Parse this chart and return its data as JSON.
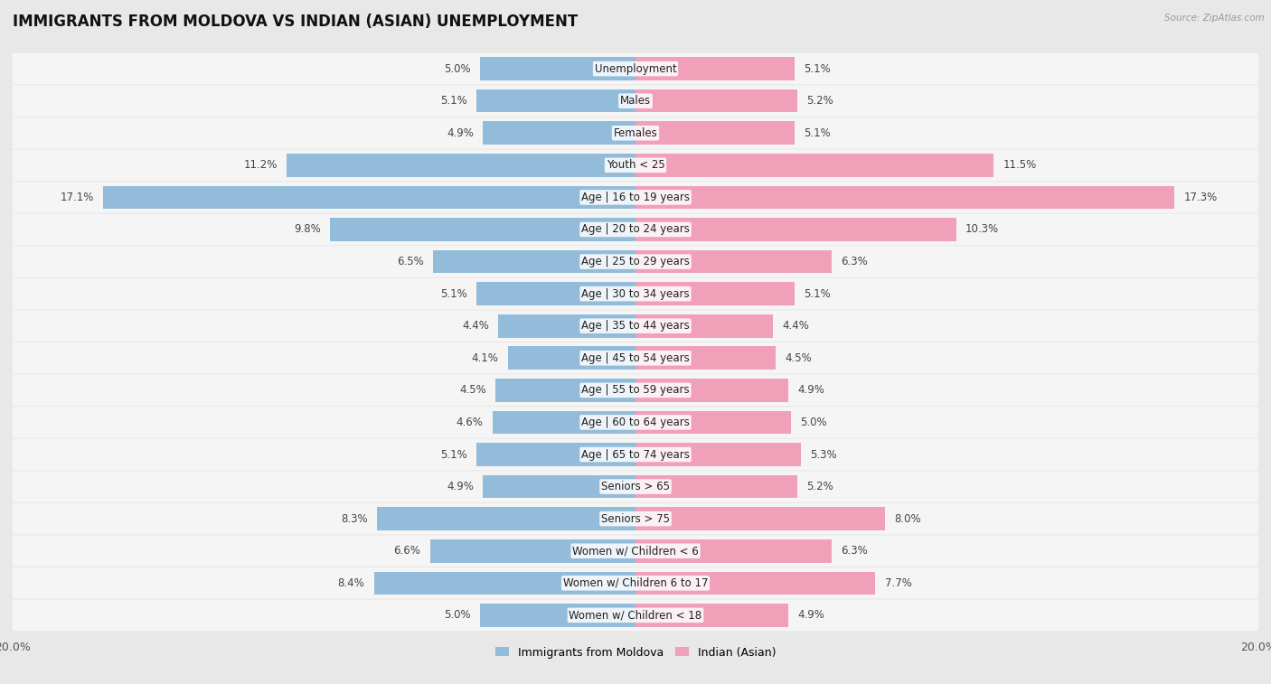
{
  "title": "IMMIGRANTS FROM MOLDOVA VS INDIAN (ASIAN) UNEMPLOYMENT",
  "source": "Source: ZipAtlas.com",
  "categories": [
    "Unemployment",
    "Males",
    "Females",
    "Youth < 25",
    "Age | 16 to 19 years",
    "Age | 20 to 24 years",
    "Age | 25 to 29 years",
    "Age | 30 to 34 years",
    "Age | 35 to 44 years",
    "Age | 45 to 54 years",
    "Age | 55 to 59 years",
    "Age | 60 to 64 years",
    "Age | 65 to 74 years",
    "Seniors > 65",
    "Seniors > 75",
    "Women w/ Children < 6",
    "Women w/ Children 6 to 17",
    "Women w/ Children < 18"
  ],
  "left_values": [
    5.0,
    5.1,
    4.9,
    11.2,
    17.1,
    9.8,
    6.5,
    5.1,
    4.4,
    4.1,
    4.5,
    4.6,
    5.1,
    4.9,
    8.3,
    6.6,
    8.4,
    5.0
  ],
  "right_values": [
    5.1,
    5.2,
    5.1,
    11.5,
    17.3,
    10.3,
    6.3,
    5.1,
    4.4,
    4.5,
    4.9,
    5.0,
    5.3,
    5.2,
    8.0,
    6.3,
    7.7,
    4.9
  ],
  "left_color": "#92bcd9",
  "right_color": "#f0a0b8",
  "left_label": "Immigrants from Moldova",
  "right_label": "Indian (Asian)",
  "max_val": 20.0,
  "bg_color": "#e8e8e8",
  "row_bg_color": "#f5f5f5",
  "title_fontsize": 12,
  "label_fontsize": 8.5,
  "value_fontsize": 8.5
}
